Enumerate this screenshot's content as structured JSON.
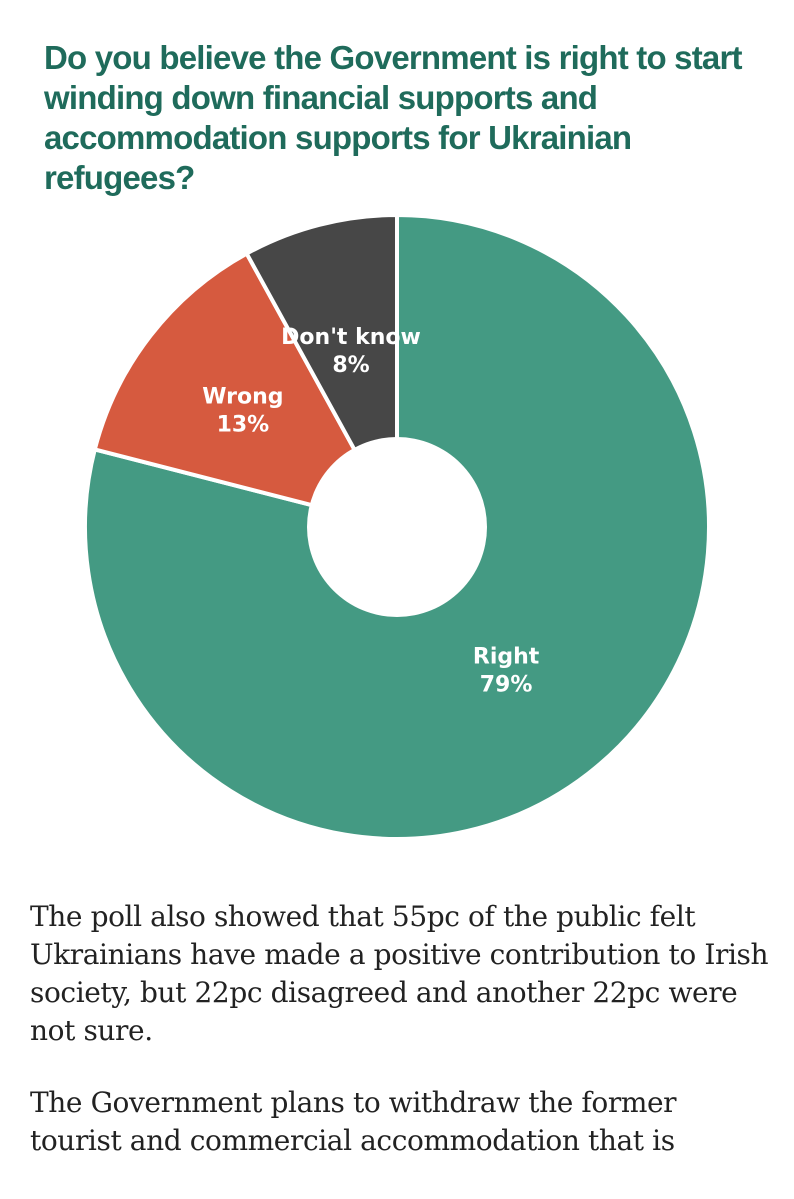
{
  "chart_data": {
    "type": "pie",
    "title": "Do you believe the Government is right to start winding down financial supports and accommodation supports for Ukrainian refugees?",
    "slices": [
      {
        "label": "Right",
        "value": 79,
        "display": "79%",
        "color": "#449a83"
      },
      {
        "label": "Wrong",
        "value": 13,
        "display": "13%",
        "color": "#d65a3f"
      },
      {
        "label": "Don't know",
        "value": 8,
        "display": "8%",
        "color": "#474747"
      }
    ],
    "donut": true
  },
  "article": {
    "paragraphs": [
      "The poll also showed that 55pc of the public felt Ukrainians have made a positive contribution to Irish society, but 22pc disagreed and another 22pc were not sure.",
      "The Government plans to withdraw the former tourist and commercial accommodation that is"
    ]
  }
}
